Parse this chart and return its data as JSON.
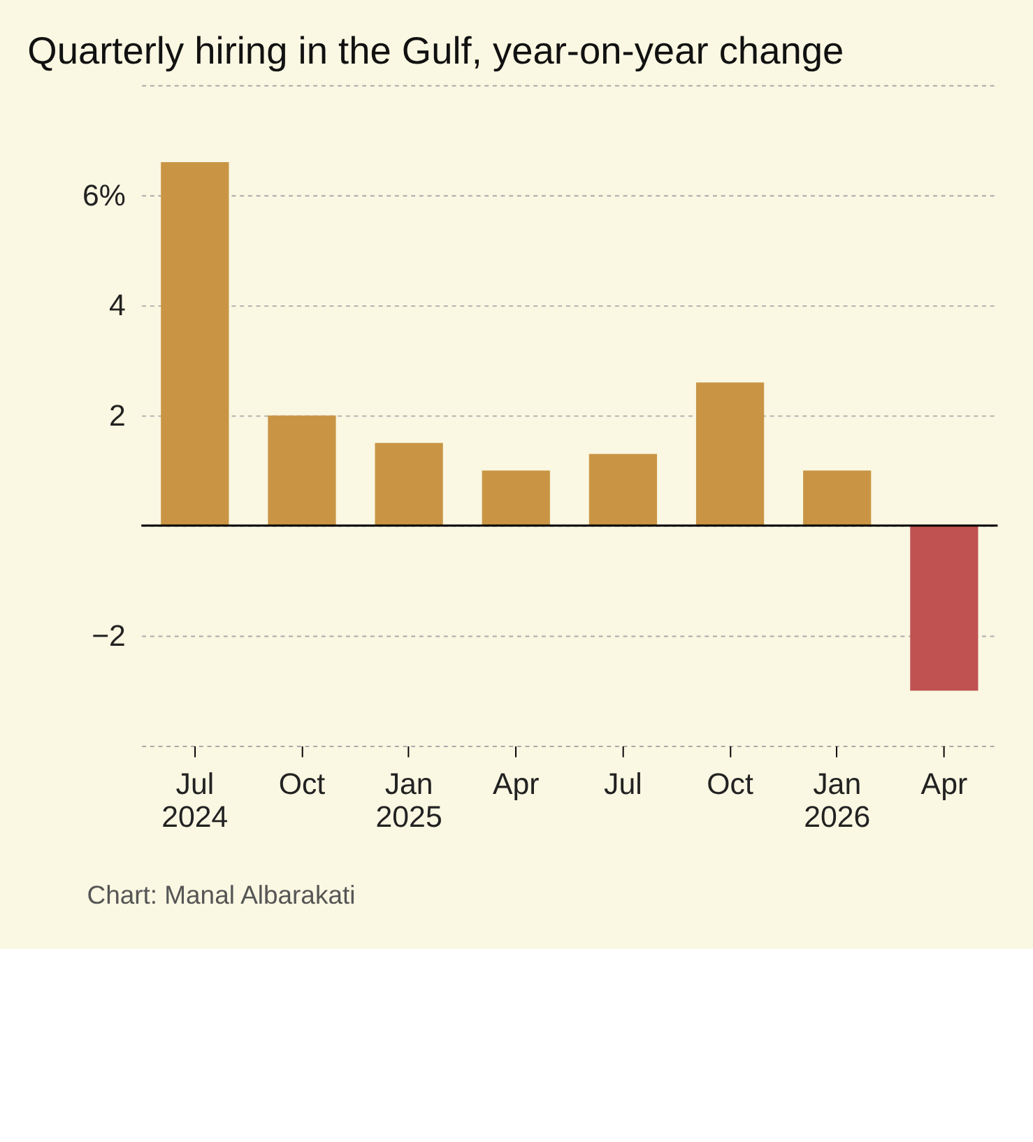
{
  "chart_data": {
    "type": "bar",
    "title": "Quarterly hiring in the Gulf, year-on-year change",
    "categories": [
      "Jul\n2024",
      "Oct",
      "Jan\n2025",
      "Apr",
      "Jul",
      "Oct",
      "Jan\n2026",
      "Apr"
    ],
    "values": [
      6.6,
      2.0,
      1.5,
      1.0,
      1.3,
      2.6,
      1.0,
      -3.0
    ],
    "colors": [
      "#c99545",
      "#c99545",
      "#c99545",
      "#c99545",
      "#c99545",
      "#c99545",
      "#c99545",
      "#c05252"
    ],
    "ylim": [
      -4,
      8
    ],
    "yticks": [
      {
        "value": -4,
        "label": null
      },
      -2,
      {
        "value": 0,
        "label": null
      },
      2,
      4,
      {
        "value": 6,
        "label": "6%"
      },
      {
        "value": 8,
        "label": null
      }
    ],
    "grid": "y",
    "ref_lines": [
      {
        "axis": "y",
        "value": 0,
        "color": "#000000"
      }
    ],
    "annotations": [
      "Chart: Manal Albarakati"
    ]
  }
}
